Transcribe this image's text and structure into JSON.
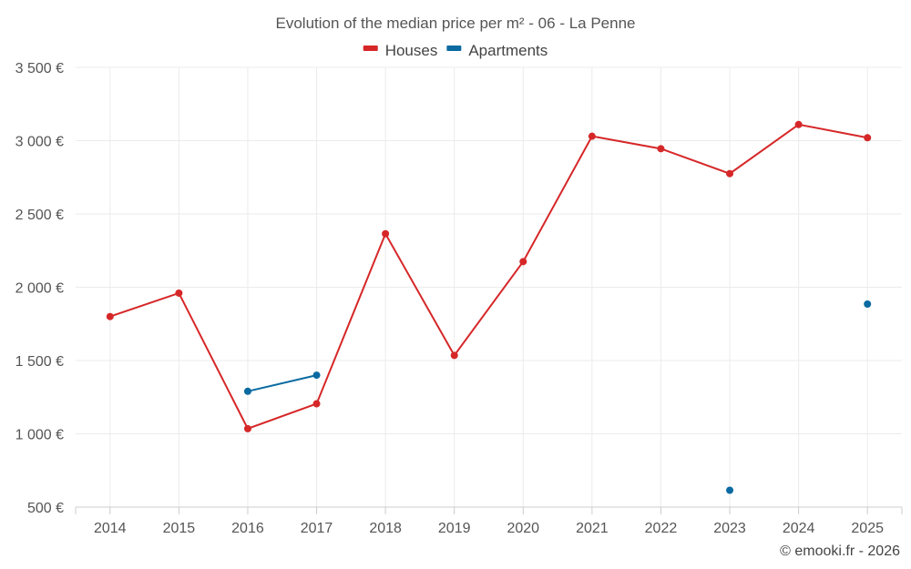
{
  "chart_data": {
    "type": "line",
    "title": "Evolution of the median price per m² - 06 - La Penne",
    "x": [
      "2014",
      "2015",
      "2016",
      "2017",
      "2018",
      "2019",
      "2020",
      "2021",
      "2022",
      "2023",
      "2024",
      "2025"
    ],
    "y_ticks": [
      "500 €",
      "1 000 €",
      "1 500 €",
      "2 000 €",
      "2 500 €",
      "3 000 €",
      "3 500 €"
    ],
    "y_tick_values": [
      500,
      1000,
      1500,
      2000,
      2500,
      3000,
      3500
    ],
    "ylim": [
      500,
      3500
    ],
    "grid": true,
    "legend_position": "top-center",
    "series": [
      {
        "name": "Houses",
        "color": "#d62728",
        "values": [
          1800,
          1960,
          1035,
          1205,
          2365,
          1535,
          2175,
          3030,
          2945,
          2775,
          3110,
          3020
        ]
      },
      {
        "name": "Apartments",
        "color": "#0a6aa1",
        "values": [
          null,
          null,
          1290,
          1400,
          null,
          null,
          null,
          null,
          null,
          615,
          null,
          1885
        ]
      }
    ]
  },
  "credit": "© emooki.fr - 2026"
}
